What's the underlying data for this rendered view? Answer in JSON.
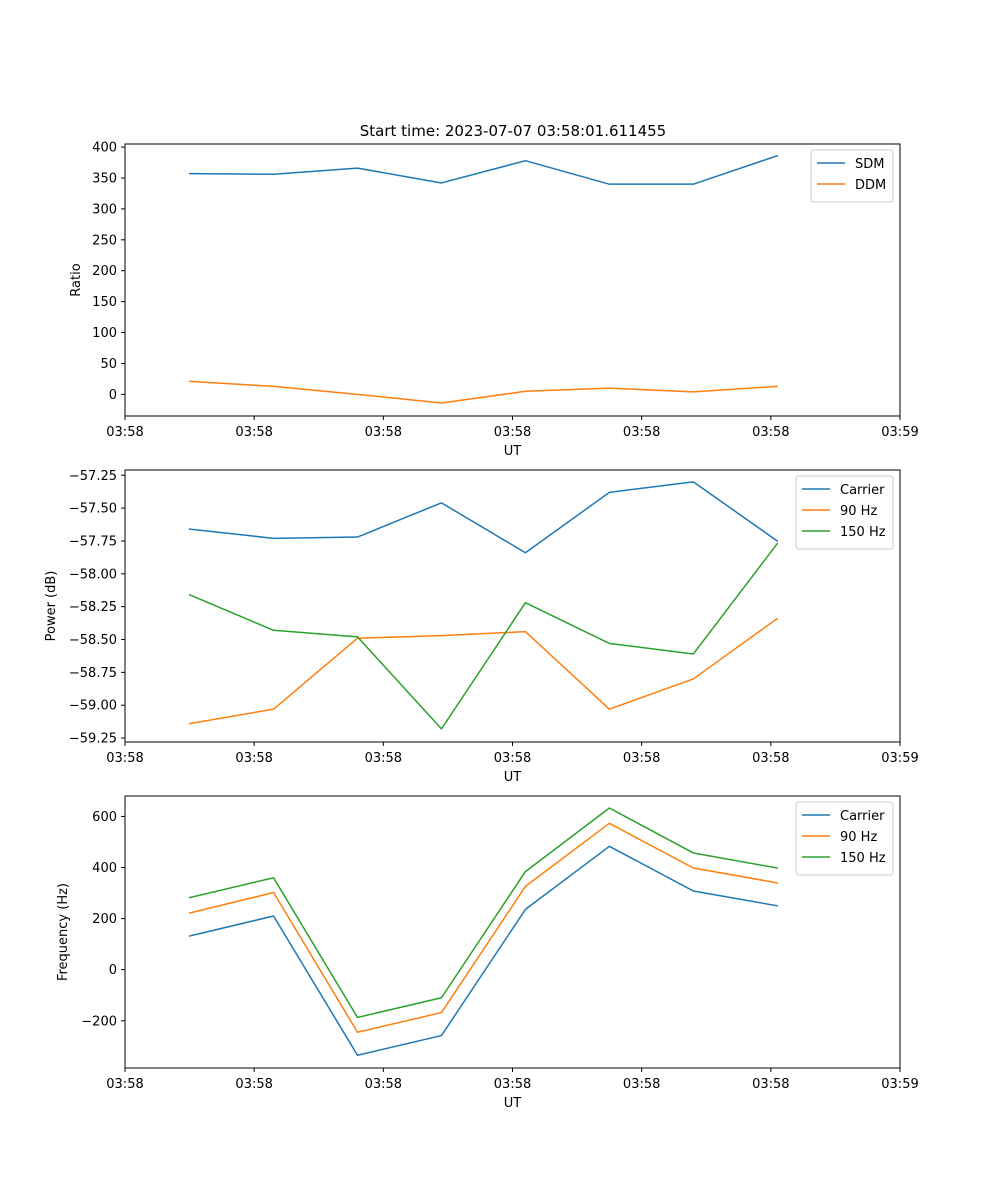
{
  "figure": {
    "title": "Start time: 2023-07-07 03:58:01.611455"
  },
  "chart_data": [
    {
      "type": "line",
      "title": "Start time: 2023-07-07 03:58:01.611455",
      "xlabel": "UT",
      "ylabel": "Ratio",
      "xticks": [
        "03:58",
        "03:58",
        "03:58",
        "03:58",
        "03:58",
        "03:58",
        "03:59"
      ],
      "xlim": [
        0,
        6
      ],
      "x": [
        0.5,
        1.15,
        1.8,
        2.45,
        3.1,
        3.75,
        4.4,
        5.05
      ],
      "ylim": [
        -35,
        405
      ],
      "yticks": [
        0,
        50,
        100,
        150,
        200,
        250,
        300,
        350,
        400
      ],
      "ytick_labels": [
        "0",
        "50",
        "100",
        "150",
        "200",
        "250",
        "300",
        "350",
        "400"
      ],
      "legend_position": "top-right",
      "series": [
        {
          "name": "SDM",
          "color": "#1f77b4",
          "values": [
            357,
            356,
            366,
            342,
            378,
            340,
            340,
            386
          ]
        },
        {
          "name": "DDM",
          "color": "#ff7f0e",
          "values": [
            21,
            13,
            0,
            -14,
            5,
            10,
            4,
            13
          ]
        }
      ]
    },
    {
      "type": "line",
      "title": "",
      "xlabel": "UT",
      "ylabel": "Power (dB)",
      "xticks": [
        "03:58",
        "03:58",
        "03:58",
        "03:58",
        "03:58",
        "03:58",
        "03:59"
      ],
      "xlim": [
        0,
        6
      ],
      "x": [
        0.5,
        1.15,
        1.8,
        2.45,
        3.1,
        3.75,
        4.4,
        5.05
      ],
      "ylim": [
        -59.28,
        -57.21
      ],
      "yticks": [
        -59.25,
        -59.0,
        -58.75,
        -58.5,
        -58.25,
        -58.0,
        -57.75,
        -57.5,
        -57.25
      ],
      "ytick_labels": [
        "−59.25",
        "−59.00",
        "−58.75",
        "−58.50",
        "−58.25",
        "−58.00",
        "−57.75",
        "−57.50",
        "−57.25"
      ],
      "legend_position": "top-right",
      "series": [
        {
          "name": "Carrier",
          "color": "#1f77b4",
          "values": [
            -57.66,
            -57.73,
            -57.72,
            -57.46,
            -57.84,
            -57.38,
            -57.3,
            -57.75
          ]
        },
        {
          "name": "90 Hz",
          "color": "#ff7f0e",
          "values": [
            -59.14,
            -59.03,
            -58.49,
            -58.47,
            -58.44,
            -59.03,
            -58.8,
            -58.34
          ]
        },
        {
          "name": "150 Hz",
          "color": "#2ca02c",
          "values": [
            -58.16,
            -58.43,
            -58.48,
            -59.18,
            -58.22,
            -58.53,
            -58.61,
            -57.77
          ]
        }
      ]
    },
    {
      "type": "line",
      "title": "",
      "xlabel": "UT",
      "ylabel": "Frequency (Hz)",
      "xticks": [
        "03:58",
        "03:58",
        "03:58",
        "03:58",
        "03:58",
        "03:58",
        "03:59"
      ],
      "xlim": [
        0,
        6
      ],
      "x": [
        0.5,
        1.15,
        1.8,
        2.45,
        3.1,
        3.75,
        4.4,
        5.05
      ],
      "ylim": [
        -385,
        680
      ],
      "yticks": [
        -200,
        0,
        200,
        400,
        600
      ],
      "ytick_labels": [
        "−200",
        "0",
        "200",
        "400",
        "600"
      ],
      "legend_position": "top-right",
      "series": [
        {
          "name": "Carrier",
          "color": "#1f77b4",
          "values": [
            132,
            210,
            -335,
            -258,
            236,
            483,
            308,
            250
          ]
        },
        {
          "name": "90 Hz",
          "color": "#ff7f0e",
          "values": [
            222,
            302,
            -245,
            -168,
            326,
            573,
            398,
            340
          ]
        },
        {
          "name": "150 Hz",
          "color": "#2ca02c",
          "values": [
            282,
            360,
            -187,
            -110,
            384,
            633,
            457,
            398
          ]
        }
      ]
    }
  ]
}
